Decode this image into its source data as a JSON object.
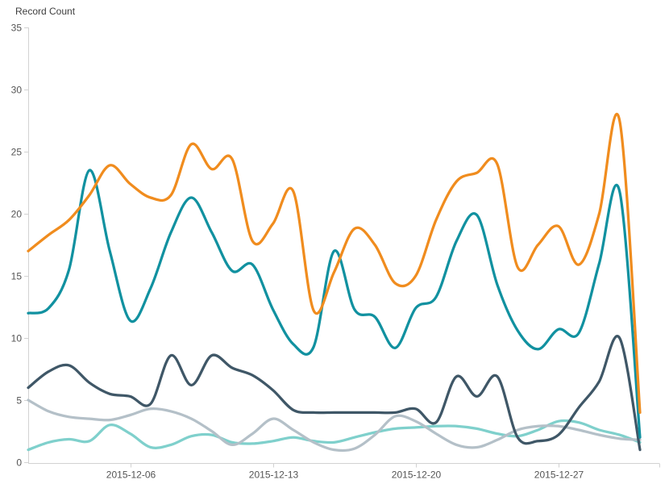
{
  "chart_data": {
    "type": "line",
    "title": "",
    "ylabel": "Record Count",
    "xlabel": "",
    "ylim": [
      0,
      35
    ],
    "y_ticks": [
      0,
      5,
      10,
      15,
      20,
      25,
      30,
      35
    ],
    "grid": false,
    "legend": "none",
    "smoothing": "spline",
    "x": [
      "2015-12-01",
      "2015-12-02",
      "2015-12-03",
      "2015-12-04",
      "2015-12-05",
      "2015-12-06",
      "2015-12-07",
      "2015-12-08",
      "2015-12-09",
      "2015-12-10",
      "2015-12-11",
      "2015-12-12",
      "2015-12-13",
      "2015-12-14",
      "2015-12-15",
      "2015-12-16",
      "2015-12-17",
      "2015-12-18",
      "2015-12-19",
      "2015-12-20",
      "2015-12-21",
      "2015-12-22",
      "2015-12-23",
      "2015-12-24",
      "2015-12-25",
      "2015-12-26",
      "2015-12-27",
      "2015-12-28",
      "2015-12-29",
      "2015-12-30",
      "2015-12-31"
    ],
    "x_tick_labels": [
      "2015-12-06",
      "2015-12-13",
      "2015-12-20",
      "2015-12-27"
    ],
    "series": [
      {
        "name": "orange-series",
        "color": "#f08c1e",
        "values": [
          17,
          18.3,
          19.5,
          21.5,
          23.9,
          22.4,
          21.3,
          21.5,
          25.6,
          23.6,
          24.4,
          17.8,
          19.2,
          21.8,
          12.2,
          15.3,
          18.8,
          17.5,
          14.4,
          15,
          19.5,
          22.6,
          23.3,
          24,
          15.7,
          17.5,
          19,
          15.9,
          20,
          27.5,
          4
        ]
      },
      {
        "name": "teal-series",
        "color": "#1191a0",
        "values": [
          12,
          12.4,
          15.5,
          23.5,
          17,
          11.4,
          14,
          18.5,
          21.3,
          18.5,
          15.4,
          15.9,
          12.3,
          9.5,
          9.3,
          17,
          12.3,
          11.7,
          9.2,
          12.4,
          13.3,
          17.8,
          19.9,
          14.3,
          10.6,
          9.1,
          10.7,
          10.4,
          16,
          21.8,
          2
        ]
      },
      {
        "name": "dark-slate-series",
        "color": "#3f5767",
        "values": [
          6,
          7.3,
          7.8,
          6.4,
          5.5,
          5.3,
          4.7,
          8.6,
          6.2,
          8.6,
          7.6,
          7,
          5.8,
          4.2,
          4,
          4,
          4,
          4,
          4,
          4.3,
          3.2,
          6.9,
          5.3,
          6.9,
          2,
          1.7,
          2.2,
          4.4,
          6.5,
          10,
          1
        ]
      },
      {
        "name": "gray-series",
        "color": "#b4c0c8",
        "values": [
          5,
          4.1,
          3.65,
          3.5,
          3.4,
          3.8,
          4.3,
          4.1,
          3.5,
          2.5,
          1.4,
          2.3,
          3.5,
          2.6,
          1.6,
          1,
          1.1,
          2.2,
          3.7,
          3.3,
          2.3,
          1.4,
          1.2,
          1.8,
          2.6,
          2.9,
          2.9,
          2.6,
          2.2,
          1.9,
          1.8
        ]
      },
      {
        "name": "pale-cyan-series",
        "color": "#7fd0cc",
        "values": [
          1,
          1.6,
          1.85,
          1.7,
          3,
          2.3,
          1.2,
          1.4,
          2.1,
          2.2,
          1.6,
          1.5,
          1.7,
          2,
          1.7,
          1.6,
          2,
          2.4,
          2.7,
          2.8,
          2.9,
          2.9,
          2.7,
          2.3,
          2.1,
          2.6,
          3.3,
          3.2,
          2.6,
          2.2,
          1.6
        ]
      }
    ]
  }
}
